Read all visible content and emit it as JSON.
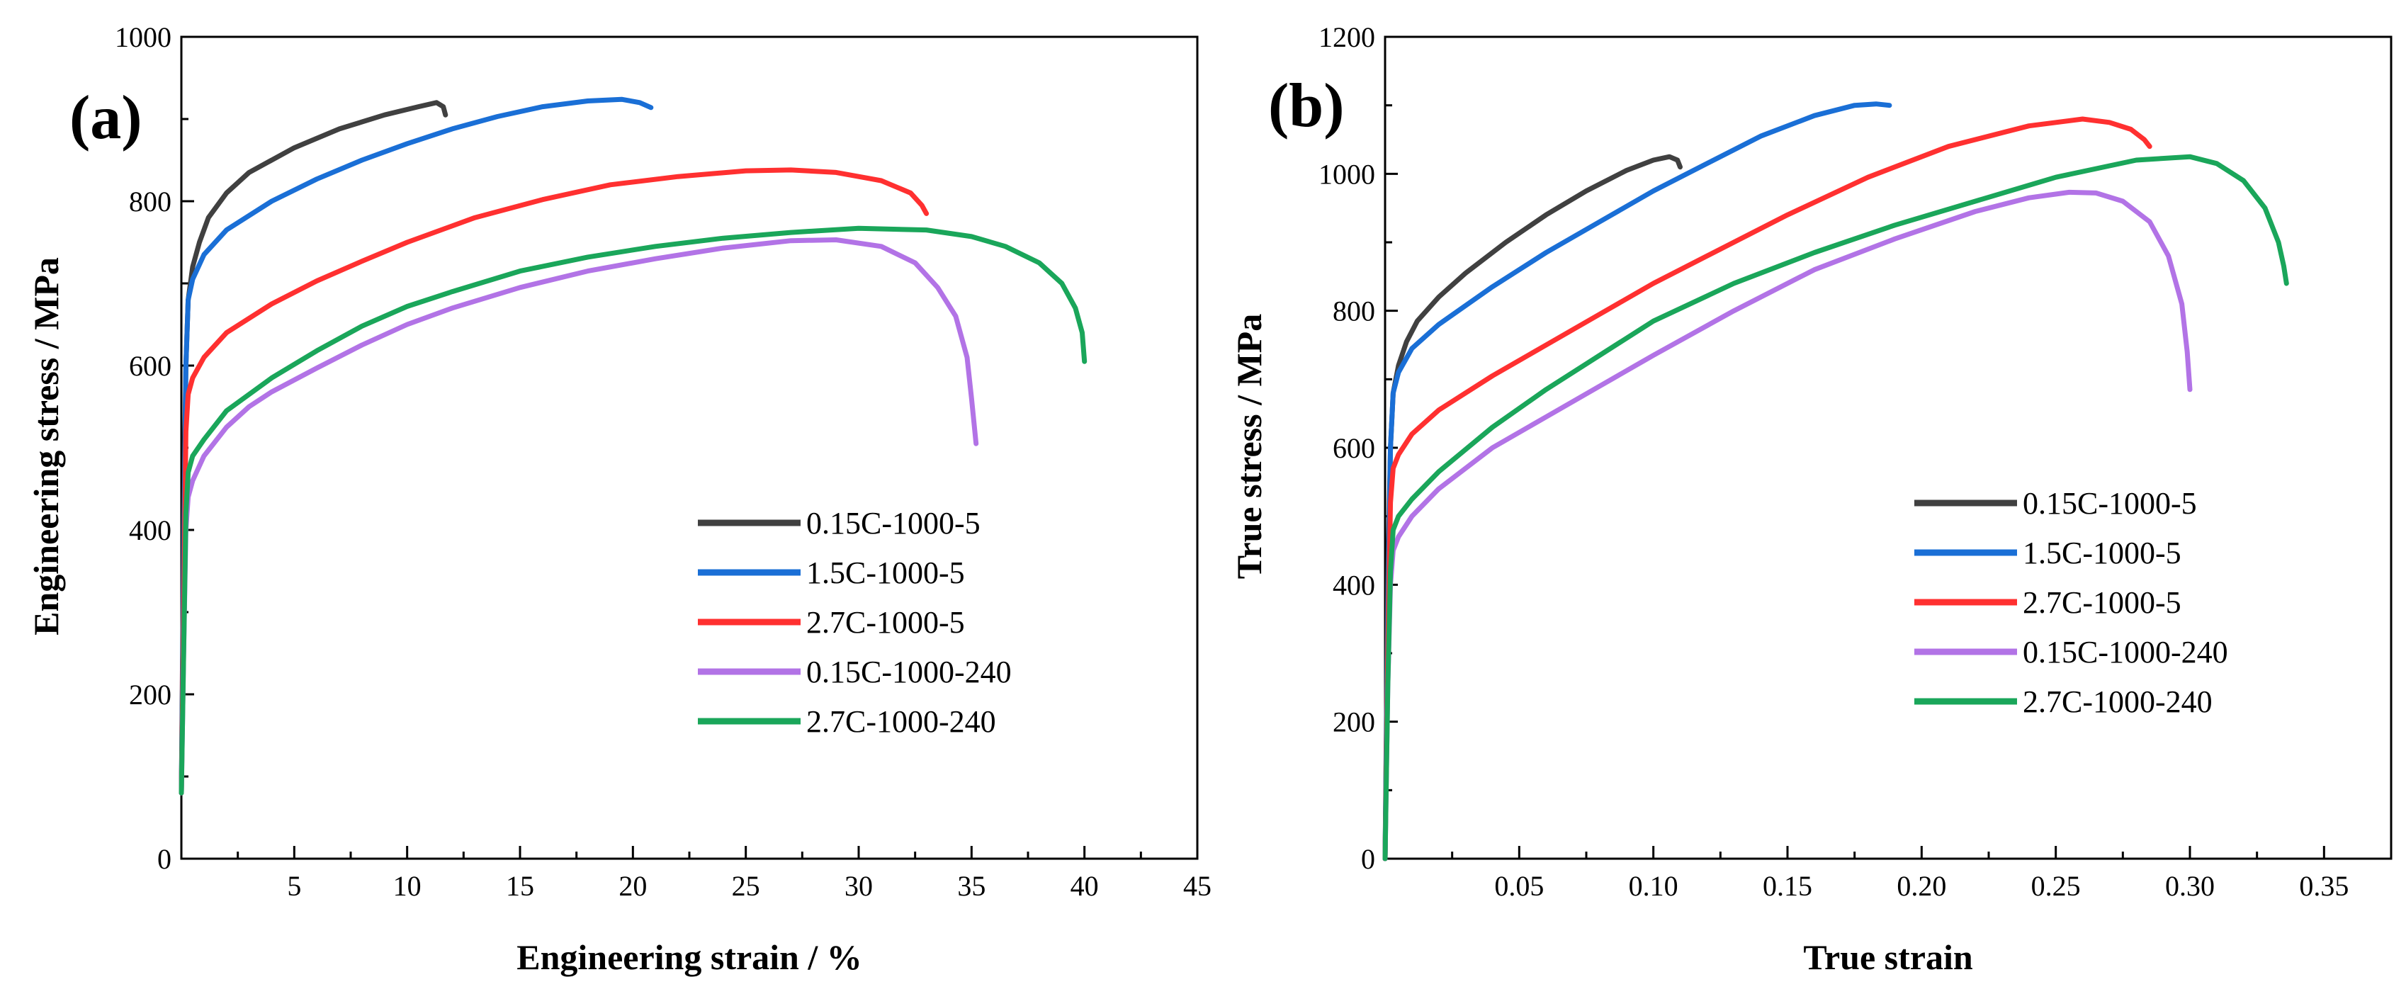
{
  "chart_data": [
    {
      "type": "line",
      "panel_label": "(a)",
      "xlabel": "Engineering strain / %",
      "ylabel": "Engineering stress / MPa",
      "xlim": [
        0,
        45
      ],
      "ylim": [
        0,
        1000
      ],
      "xticks": [
        5,
        10,
        15,
        20,
        25,
        30,
        35,
        40,
        45
      ],
      "xtick_labels": [
        "5",
        "10",
        "15",
        "20",
        "25",
        "30",
        "35",
        "40",
        "45"
      ],
      "yticks": [
        0,
        200,
        400,
        600,
        800,
        1000
      ],
      "ytick_labels": [
        "0",
        "200",
        "400",
        "600",
        "800",
        "1000"
      ],
      "legend_position": "center-right",
      "series": [
        {
          "name": "0.15C-1000-5",
          "color": "#404040",
          "x": [
            0,
            0.1,
            0.2,
            0.3,
            0.5,
            0.8,
            1.2,
            2,
            3,
            5,
            7,
            9,
            10.5,
            11.3,
            11.6,
            11.7
          ],
          "y": [
            80,
            400,
            600,
            680,
            720,
            750,
            780,
            810,
            835,
            865,
            888,
            905,
            915,
            920,
            915,
            905
          ]
        },
        {
          "name": "1.5C-1000-5",
          "color": "#1a6fd6",
          "x": [
            0,
            0.1,
            0.2,
            0.3,
            0.5,
            1,
            2,
            4,
            6,
            8,
            10,
            12,
            14,
            16,
            18,
            19.5,
            20.3,
            20.8
          ],
          "y": [
            80,
            350,
            600,
            680,
            705,
            735,
            765,
            800,
            827,
            850,
            870,
            888,
            903,
            915,
            922,
            924,
            920,
            914
          ]
        },
        {
          "name": "2.7C-1000-5",
          "color": "#ff3030",
          "x": [
            0,
            0.1,
            0.2,
            0.3,
            0.5,
            1,
            2,
            4,
            6,
            8,
            10,
            13,
            16,
            19,
            22,
            25,
            27,
            29,
            31,
            32.3,
            32.8,
            33
          ],
          "y": [
            80,
            300,
            520,
            565,
            585,
            610,
            640,
            675,
            703,
            727,
            750,
            780,
            802,
            820,
            830,
            837,
            838,
            835,
            825,
            810,
            795,
            785
          ]
        },
        {
          "name": "0.15C-1000-240",
          "color": "#b273e6",
          "x": [
            0,
            0.1,
            0.2,
            0.3,
            0.5,
            1,
            2,
            3,
            4,
            6,
            8,
            10,
            12,
            15,
            18,
            21,
            24,
            27,
            29,
            31,
            32.5,
            33.5,
            34.3,
            34.8,
            35,
            35.2
          ],
          "y": [
            80,
            250,
            400,
            440,
            460,
            490,
            525,
            550,
            568,
            597,
            625,
            650,
            670,
            695,
            715,
            730,
            743,
            752,
            753,
            745,
            725,
            695,
            660,
            610,
            560,
            505
          ]
        },
        {
          "name": "2.7C-1000-240",
          "color": "#1aa65a",
          "x": [
            0,
            0.1,
            0.2,
            0.3,
            0.5,
            1,
            2,
            4,
            6,
            8,
            10,
            12,
            15,
            18,
            21,
            24,
            27,
            30,
            33,
            35,
            36.5,
            38,
            39,
            39.6,
            39.9,
            40
          ],
          "y": [
            80,
            250,
            420,
            470,
            490,
            510,
            545,
            585,
            618,
            648,
            672,
            690,
            715,
            732,
            745,
            755,
            762,
            767,
            765,
            757,
            745,
            725,
            700,
            670,
            640,
            605
          ]
        }
      ]
    },
    {
      "type": "line",
      "panel_label": "(b)",
      "xlabel": "True strain",
      "ylabel": "True stress / MPa",
      "xlim": [
        0,
        0.375
      ],
      "ylim": [
        0,
        1200
      ],
      "xticks": [
        0.05,
        0.1,
        0.15,
        0.2,
        0.25,
        0.3,
        0.35
      ],
      "xtick_labels": [
        "0.05",
        "0.10",
        "0.15",
        "0.20",
        "0.25",
        "0.30",
        "0.35"
      ],
      "yticks": [
        0,
        200,
        400,
        600,
        800,
        1000,
        1200
      ],
      "ytick_labels": [
        "0",
        "200",
        "400",
        "600",
        "800",
        "1000",
        "1200"
      ],
      "legend_position": "center-right",
      "series": [
        {
          "name": "0.15C-1000-5",
          "color": "#404040",
          "x": [
            0,
            0.001,
            0.002,
            0.003,
            0.005,
            0.008,
            0.012,
            0.02,
            0.03,
            0.045,
            0.06,
            0.075,
            0.09,
            0.1,
            0.106,
            0.109,
            0.11
          ],
          "y": [
            0,
            400,
            600,
            680,
            720,
            755,
            785,
            820,
            855,
            900,
            940,
            975,
            1005,
            1020,
            1025,
            1020,
            1010
          ]
        },
        {
          "name": "1.5C-1000-5",
          "color": "#1a6fd6",
          "x": [
            0,
            0.001,
            0.002,
            0.003,
            0.005,
            0.01,
            0.02,
            0.04,
            0.06,
            0.08,
            0.1,
            0.12,
            0.14,
            0.16,
            0.175,
            0.183,
            0.188
          ],
          "y": [
            0,
            350,
            600,
            680,
            710,
            745,
            780,
            835,
            885,
            930,
            975,
            1015,
            1055,
            1085,
            1100,
            1102,
            1100
          ]
        },
        {
          "name": "2.7C-1000-5",
          "color": "#ff3030",
          "x": [
            0,
            0.001,
            0.002,
            0.003,
            0.005,
            0.01,
            0.02,
            0.04,
            0.06,
            0.08,
            0.1,
            0.12,
            0.15,
            0.18,
            0.21,
            0.24,
            0.26,
            0.27,
            0.278,
            0.283,
            0.285
          ],
          "y": [
            0,
            300,
            520,
            570,
            590,
            620,
            655,
            705,
            750,
            795,
            840,
            880,
            940,
            995,
            1040,
            1070,
            1080,
            1075,
            1065,
            1050,
            1040
          ]
        },
        {
          "name": "0.15C-1000-240",
          "color": "#b273e6",
          "x": [
            0,
            0.001,
            0.002,
            0.003,
            0.005,
            0.01,
            0.02,
            0.04,
            0.06,
            0.08,
            0.1,
            0.13,
            0.16,
            0.19,
            0.22,
            0.24,
            0.255,
            0.265,
            0.275,
            0.285,
            0.292,
            0.297,
            0.299,
            0.3
          ],
          "y": [
            0,
            250,
            400,
            450,
            470,
            500,
            540,
            600,
            645,
            690,
            735,
            800,
            860,
            905,
            945,
            965,
            973,
            972,
            960,
            930,
            880,
            810,
            740,
            685
          ]
        },
        {
          "name": "2.7C-1000-240",
          "color": "#1aa65a",
          "x": [
            0,
            0.001,
            0.002,
            0.003,
            0.005,
            0.01,
            0.02,
            0.04,
            0.06,
            0.08,
            0.1,
            0.13,
            0.16,
            0.19,
            0.22,
            0.25,
            0.28,
            0.3,
            0.31,
            0.32,
            0.328,
            0.333,
            0.335,
            0.336
          ],
          "y": [
            0,
            250,
            420,
            480,
            500,
            525,
            565,
            630,
            685,
            735,
            785,
            840,
            885,
            925,
            960,
            995,
            1020,
            1025,
            1015,
            990,
            950,
            900,
            865,
            840
          ]
        }
      ]
    }
  ]
}
